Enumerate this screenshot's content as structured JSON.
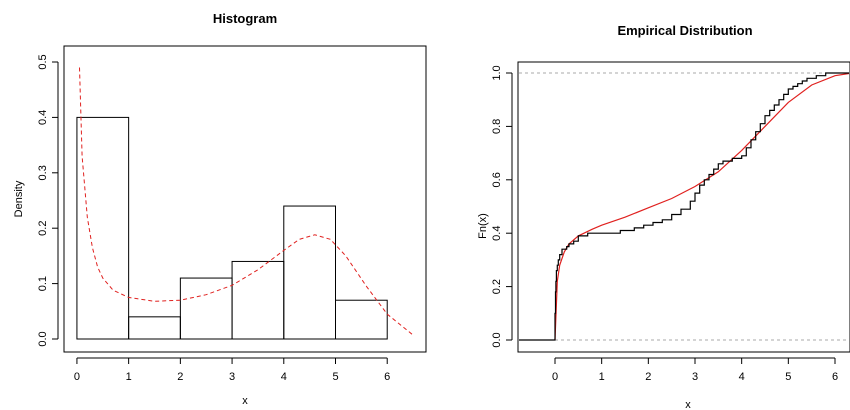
{
  "chart_data": [
    {
      "type": "bar",
      "title": "Histogram",
      "xlabel": "x",
      "ylabel": "Density",
      "xlim": [
        -0.25,
        6.75
      ],
      "ylim": [
        0,
        0.5
      ],
      "xticks": [
        0,
        1,
        2,
        3,
        4,
        5,
        6
      ],
      "yticks": [
        0.0,
        0.1,
        0.2,
        0.3,
        0.4,
        0.5
      ],
      "ytick_labels": [
        "0.0",
        "0.1",
        "0.2",
        "0.3",
        "0.4",
        "0.5"
      ],
      "bins": [
        {
          "from": 0,
          "to": 1,
          "density": 0.4
        },
        {
          "from": 1,
          "to": 2,
          "density": 0.04
        },
        {
          "from": 2,
          "to": 3,
          "density": 0.11
        },
        {
          "from": 3,
          "to": 4,
          "density": 0.14
        },
        {
          "from": 4,
          "to": 5,
          "density": 0.24
        },
        {
          "from": 5,
          "to": 6,
          "density": 0.07
        }
      ],
      "fitted_density": {
        "style": "dashed",
        "color": "#e0211f",
        "x": [
          0.05,
          0.1,
          0.2,
          0.3,
          0.4,
          0.5,
          0.7,
          1.0,
          1.5,
          2.0,
          2.5,
          3.0,
          3.5,
          4.0,
          4.3,
          4.6,
          4.9,
          5.2,
          5.6,
          6.0,
          6.5
        ],
        "y": [
          0.49,
          0.33,
          0.22,
          0.165,
          0.13,
          0.11,
          0.088,
          0.075,
          0.068,
          0.07,
          0.08,
          0.097,
          0.125,
          0.16,
          0.18,
          0.188,
          0.18,
          0.15,
          0.095,
          0.045,
          0.007
        ]
      }
    },
    {
      "type": "line",
      "title": "Empirical Distribution",
      "xlabel": "x",
      "ylabel": "Fn(x)",
      "xlim": [
        -0.75,
        6.3
      ],
      "ylim": [
        -0.02,
        1.03
      ],
      "xticks": [
        0,
        1,
        2,
        3,
        4,
        5,
        6
      ],
      "yticks": [
        0.0,
        0.2,
        0.4,
        0.6,
        0.8,
        1.0
      ],
      "ytick_labels": [
        "0.0",
        "0.2",
        "0.4",
        "0.6",
        "0.8",
        "1.0"
      ],
      "reference_lines": [
        0,
        1
      ],
      "ecdf": {
        "color": "#000000",
        "x": [
          0.0,
          0.01,
          0.02,
          0.03,
          0.05,
          0.07,
          0.1,
          0.15,
          0.2,
          0.25,
          0.3,
          0.4,
          0.5,
          0.7,
          1.0,
          1.4,
          1.7,
          1.9,
          2.1,
          2.3,
          2.5,
          2.7,
          2.9,
          3.0,
          3.1,
          3.2,
          3.3,
          3.4,
          3.5,
          3.6,
          3.8,
          4.0,
          4.1,
          4.2,
          4.3,
          4.4,
          4.5,
          4.6,
          4.7,
          4.8,
          4.9,
          5.0,
          5.1,
          5.2,
          5.3,
          5.4,
          5.6,
          5.8,
          6.0,
          6.2
        ],
        "y": [
          0.1,
          0.18,
          0.22,
          0.26,
          0.28,
          0.3,
          0.32,
          0.34,
          0.34,
          0.35,
          0.36,
          0.37,
          0.39,
          0.4,
          0.4,
          0.41,
          0.42,
          0.43,
          0.44,
          0.45,
          0.47,
          0.49,
          0.52,
          0.55,
          0.58,
          0.6,
          0.62,
          0.64,
          0.66,
          0.67,
          0.68,
          0.69,
          0.72,
          0.75,
          0.78,
          0.81,
          0.84,
          0.86,
          0.88,
          0.9,
          0.92,
          0.94,
          0.95,
          0.96,
          0.97,
          0.98,
          0.99,
          1.0,
          1.0,
          1.0
        ]
      },
      "fitted_cdf": {
        "color": "#e0211f",
        "x": [
          0.0,
          0.05,
          0.1,
          0.2,
          0.3,
          0.5,
          0.8,
          1.0,
          1.5,
          2.0,
          2.5,
          3.0,
          3.5,
          4.0,
          4.5,
          5.0,
          5.5,
          6.0,
          6.3
        ],
        "y": [
          0.0,
          0.22,
          0.28,
          0.33,
          0.36,
          0.39,
          0.415,
          0.43,
          0.46,
          0.495,
          0.53,
          0.575,
          0.63,
          0.71,
          0.8,
          0.89,
          0.955,
          0.99,
          0.998
        ]
      }
    }
  ]
}
